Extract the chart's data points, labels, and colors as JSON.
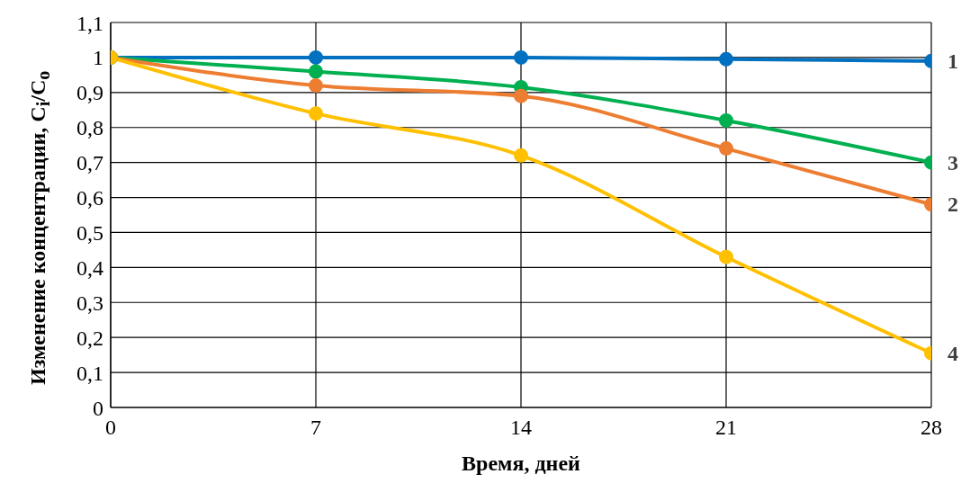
{
  "chart_data": {
    "type": "line",
    "xlabel": "Время, дней",
    "ylabel": "Изменение концентрации, C$_{i}$/C$_{o}$",
    "x": [
      0,
      7,
      14,
      21,
      28
    ],
    "xlim": [
      0,
      28
    ],
    "xticks": [
      0,
      7,
      14,
      21,
      28
    ],
    "ylim": [
      0,
      1.1
    ],
    "yticks": [
      0,
      {
        "value": 0.1,
        "label": "0,1"
      },
      {
        "value": 0.2,
        "label": "0,2"
      },
      {
        "value": 0.3,
        "label": "0,3"
      },
      {
        "value": 0.4,
        "label": "0,4"
      },
      {
        "value": 0.5,
        "label": "0,5"
      },
      {
        "value": 0.6,
        "label": "0,6"
      },
      {
        "value": 0.7,
        "label": "0,7"
      },
      {
        "value": 0.8,
        "label": "0,8"
      },
      {
        "value": 0.9,
        "label": "0,9"
      },
      1,
      {
        "value": 1.1,
        "label": "1,1"
      }
    ],
    "grid": true,
    "marker": "circle",
    "line_style": "solid",
    "legend": false,
    "series": [
      {
        "name": "1",
        "color": "#0070c0",
        "values": [
          1,
          1,
          1,
          0.995,
          0.99
        ]
      },
      {
        "name": "3",
        "color": "#00b050",
        "values": [
          1,
          0.96,
          0.915,
          0.82,
          0.7
        ]
      },
      {
        "name": "2",
        "color": "#ed7d31",
        "values": [
          1,
          0.92,
          0.89,
          0.74,
          0.58
        ]
      },
      {
        "name": "4",
        "color": "#ffc000",
        "values": [
          1,
          0.84,
          0.72,
          0.43,
          0.155
        ]
      }
    ]
  }
}
